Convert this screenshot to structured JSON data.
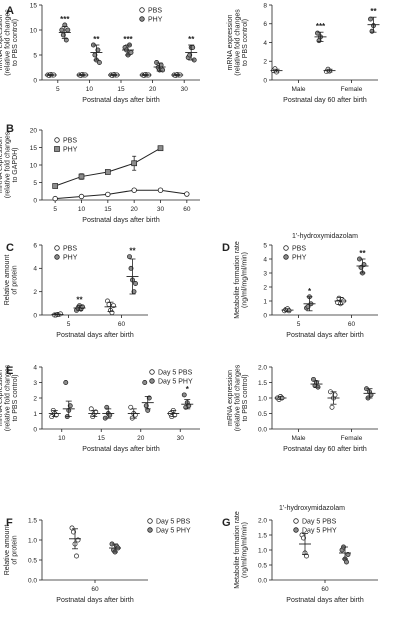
{
  "colors": {
    "pbs_fill": "#ffffff",
    "phy_fill": "#8c8c8c",
    "stroke": "#222222"
  },
  "chart_data": [
    {
      "id": "A1",
      "letter": "A",
      "type": "scatter",
      "xlabel": "Postnatal days after birth",
      "ylabel": [
        "mRNA expression",
        "(relative fold changes",
        "to PBS control)"
      ],
      "categories": [
        "5",
        "10",
        "15",
        "20",
        "30"
      ],
      "ylim": [
        0,
        15
      ],
      "yticks": [
        0,
        5,
        10,
        15
      ],
      "legend": [
        {
          "name": "PBS",
          "marker": "circle-open"
        },
        {
          "name": "PHY",
          "marker": "circle-filled"
        }
      ],
      "series": [
        {
          "name": "PBS",
          "mean": [
            1,
            1,
            1,
            1,
            1
          ],
          "sd": [
            0.1,
            0.1,
            0.1,
            0.1,
            0.1
          ],
          "points": [
            [
              1,
              0.9,
              1.1,
              1,
              1
            ],
            [
              1,
              0.9,
              1.1,
              1,
              1
            ],
            [
              1,
              0.9,
              1.1,
              1,
              1
            ],
            [
              1,
              0.9,
              1.1,
              1,
              1
            ],
            [
              1,
              0.9,
              1.1,
              1,
              1
            ]
          ]
        },
        {
          "name": "PHY",
          "mean": [
            9.5,
            5.5,
            6,
            2.6,
            5.5
          ],
          "sd": [
            1.2,
            1.5,
            1,
            0.8,
            1.5
          ],
          "points": [
            [
              10,
              9,
              11,
              8,
              10
            ],
            [
              7,
              5,
              4,
              6,
              3.5
            ],
            [
              6.5,
              6,
              5,
              7,
              5.5
            ],
            [
              3.5,
              2.5,
              2,
              3,
              2
            ],
            [
              4.5,
              5,
              6.5,
              6.5,
              4
            ]
          ]
        }
      ],
      "annotations": [
        "***",
        "**",
        "***",
        "",
        "**"
      ]
    },
    {
      "id": "A2",
      "type": "scatter",
      "xlabel": "Postnatal day 60 after birth",
      "ylabel": [
        "mRNA expression",
        "(relative fold changes",
        "to PBS control)"
      ],
      "categories": [
        "Male",
        "Female"
      ],
      "ylim": [
        0,
        8
      ],
      "yticks": [
        0,
        2,
        4,
        6,
        8
      ],
      "series": [
        {
          "name": "PBS",
          "mean": [
            1,
            1
          ],
          "sd": [
            0.15,
            0.15
          ],
          "points": [
            [
              1,
              1.2,
              0.85
            ],
            [
              0.9,
              1.15,
              0.95
            ]
          ]
        },
        {
          "name": "PHY",
          "mean": [
            4.6,
            5.9
          ],
          "sd": [
            0.5,
            0.8
          ],
          "points": [
            [
              5,
              4.2,
              4.6
            ],
            [
              6.5,
              5.2,
              5.8
            ]
          ]
        }
      ],
      "annotations": [
        "***",
        "**"
      ]
    },
    {
      "id": "B",
      "letter": "B",
      "type": "line",
      "xlabel": "Postnatal days after birth",
      "ylabel": [
        "mRNA expression",
        "(relative fold changes",
        "to GAPDH)"
      ],
      "categories": [
        "5",
        "10",
        "15",
        "20",
        "30",
        "60"
      ],
      "ylim": [
        0,
        20
      ],
      "yticks": [
        0,
        5,
        10,
        15,
        20
      ],
      "legend": [
        {
          "name": "PBS",
          "marker": "circle-open"
        },
        {
          "name": "PHY",
          "marker": "square-filled"
        }
      ],
      "series": [
        {
          "name": "PBS",
          "values": [
            0.4,
            1,
            1.6,
            2.8,
            2.8,
            1.7
          ],
          "sd": [
            0.1,
            0.2,
            0.2,
            0.3,
            0.3,
            0.3
          ]
        },
        {
          "name": "PHY",
          "values": [
            4,
            6.7,
            8,
            10.5,
            14.8,
            0
          ],
          "sd": [
            0.3,
            0.8,
            0.6,
            2,
            0.4,
            0
          ]
        }
      ]
    },
    {
      "id": "C",
      "letter": "C",
      "type": "scatter",
      "xlabel": "Postnatal days after birth",
      "ylabel": [
        "Relative amount",
        "of protein"
      ],
      "categories": [
        "5",
        "60"
      ],
      "ylim": [
        0,
        6
      ],
      "yticks": [
        0,
        2,
        4,
        6
      ],
      "legend": [
        {
          "name": "PBS",
          "marker": "circle-open"
        },
        {
          "name": "PHY",
          "marker": "circle-filled"
        }
      ],
      "series": [
        {
          "name": "PBS",
          "mean": [
            0.05,
            0.7
          ],
          "sd": [
            0.05,
            0.4
          ],
          "points": [
            [
              0,
              0,
              0.05,
              0.05,
              0.1
            ],
            [
              1.2,
              0.9,
              0.4,
              0.2,
              0.8
            ]
          ]
        },
        {
          "name": "PHY",
          "mean": [
            0.6,
            3.3
          ],
          "sd": [
            0.2,
            1.5
          ],
          "points": [
            [
              0.4,
              0.6,
              0.8,
              0.5,
              0.7
            ],
            [
              5,
              4,
              3,
              2,
              2.7
            ]
          ]
        }
      ],
      "annotations": [
        "**",
        "**"
      ]
    },
    {
      "id": "D",
      "letter": "D",
      "type": "scatter",
      "title": "1'-hydroxymidazolam",
      "xlabel": "Postnatal days after birth",
      "ylabel": [
        "Metabolite formation rate",
        "(ng/ml/mg/ml/min)"
      ],
      "categories": [
        "5",
        "60"
      ],
      "ylim": [
        0,
        5
      ],
      "yticks": [
        0,
        1,
        2,
        3,
        4,
        5
      ],
      "legend": [
        {
          "name": "PBS",
          "marker": "circle-open"
        },
        {
          "name": "PHY",
          "marker": "circle-filled"
        }
      ],
      "series": [
        {
          "name": "PBS",
          "mean": [
            0.35,
            1
          ],
          "sd": [
            0.1,
            0.25
          ],
          "points": [
            [
              0.3,
              0.4,
              0.45,
              0.3
            ],
            [
              0.9,
              1.2,
              0.8,
              1.1,
              1
            ]
          ]
        },
        {
          "name": "PHY",
          "mean": [
            0.8,
            3.5
          ],
          "sd": [
            0.5,
            0.5
          ],
          "points": [
            [
              0.5,
              0.6,
              1.3,
              0.8
            ],
            [
              4,
              3.4,
              3,
              3.6
            ]
          ]
        }
      ],
      "annotations": [
        "*",
        "**"
      ]
    },
    {
      "id": "E1",
      "letter": "E",
      "type": "scatter",
      "xlabel": "Postnatal days after birth",
      "ylabel": [
        "mRNA expression",
        "(relative fold changes",
        "to PBS control)"
      ],
      "categories": [
        "10",
        "15",
        "20",
        "30"
      ],
      "ylim": [
        0,
        4
      ],
      "yticks": [
        0,
        1,
        2,
        3,
        4
      ],
      "legend": [
        {
          "name": "Day 5 PBS",
          "marker": "circle-open"
        },
        {
          "name": "Day 5 PHY",
          "marker": "circle-filled"
        }
      ],
      "series": [
        {
          "name": "Day 5 PBS",
          "mean": [
            1,
            1,
            1,
            1
          ],
          "sd": [
            0.2,
            0.2,
            0.3,
            0.2
          ],
          "points": [
            [
              0.8,
              1.2,
              1,
              0.9
            ],
            [
              1.3,
              0.8,
              1,
              1.1
            ],
            [
              1.4,
              0.7,
              1,
              0.9
            ],
            [
              1,
              0.8,
              1.2,
              0.9
            ]
          ]
        },
        {
          "name": "Day 5 PHY",
          "mean": [
            1.3,
            1,
            1.7,
            1.6
          ],
          "sd": [
            0.5,
            0.3,
            0.4,
            0.3
          ],
          "points": [
            [
              3,
              0.8,
              1.2,
              1.5
            ],
            [
              0.7,
              1.4,
              1,
              0.9
            ],
            [
              3,
              1.5,
              1.2,
              2
            ],
            [
              2.2,
              1.4,
              1.7,
              1.5
            ]
          ]
        }
      ],
      "annotations": [
        "",
        "",
        "",
        "*"
      ]
    },
    {
      "id": "E2",
      "type": "scatter",
      "xlabel": "Postnatal day 60 after birth",
      "ylabel": [
        "mRNA expression",
        "(relative fold changes",
        "to PBS control)"
      ],
      "categories": [
        "Male",
        "Female"
      ],
      "ylim": [
        0,
        2
      ],
      "yticks": [
        0.0,
        0.5,
        1.0,
        1.5,
        2.0
      ],
      "series": [
        {
          "name": "PBS",
          "mean": [
            1,
            1
          ],
          "sd": [
            0.05,
            0.2
          ],
          "points": [
            [
              1,
              0.95,
              1.05,
              1
            ],
            [
              1.2,
              0.7,
              1,
              1.1
            ]
          ]
        },
        {
          "name": "PHY",
          "mean": [
            1.45,
            1.15
          ],
          "sd": [
            0.1,
            0.15
          ],
          "points": [
            [
              1.6,
              1.4,
              1.5,
              1.35
            ],
            [
              1.3,
              1,
              1.2,
              1.1
            ]
          ]
        }
      ],
      "annotations": [
        "",
        ""
      ]
    },
    {
      "id": "F",
      "letter": "F",
      "type": "scatter",
      "xlabel": "Postnatal days after birth",
      "ylabel": [
        "Relative amount",
        "of protein"
      ],
      "categories": [
        "60"
      ],
      "ylim": [
        0,
        1.5
      ],
      "yticks": [
        0.0,
        0.5,
        1.0,
        1.5
      ],
      "legend": [
        {
          "name": "Day 5 PBS",
          "marker": "circle-open"
        },
        {
          "name": "Day 5 PHY",
          "marker": "circle-filled"
        }
      ],
      "series": [
        {
          "name": "Day 5 PBS",
          "mean": [
            1.03
          ],
          "sd": [
            0.25
          ],
          "points": [
            [
              1.3,
              1.2,
              0.9,
              0.6,
              1
            ]
          ]
        },
        {
          "name": "Day 5 PHY",
          "mean": [
            0.8
          ],
          "sd": [
            0.1
          ],
          "points": [
            [
              0.9,
              0.75,
              0.7,
              0.85,
              0.8
            ]
          ]
        }
      ]
    },
    {
      "id": "G",
      "letter": "G",
      "type": "scatter",
      "title": "1'-hydroxymidazolam",
      "xlabel": "Postnatal days after birth",
      "ylabel": [
        "Metabolite formation rate",
        "(ng/ml/mg/ml/min)"
      ],
      "categories": [
        "60"
      ],
      "ylim": [
        0,
        2
      ],
      "yticks": [
        0.0,
        0.5,
        1.0,
        1.5,
        2.0
      ],
      "legend": [
        {
          "name": "Day 5 PBS",
          "marker": "circle-open"
        },
        {
          "name": "Day 5 PHY",
          "marker": "circle-filled"
        }
      ],
      "series": [
        {
          "name": "Day 5 PBS",
          "mean": [
            1.2
          ],
          "sd": [
            0.35
          ],
          "points": [
            [
              1.5,
              1.4,
              0.9,
              0.8
            ]
          ]
        },
        {
          "name": "Day 5 PHY",
          "mean": [
            0.9
          ],
          "sd": [
            0.2
          ],
          "points": [
            [
              1,
              1.1,
              0.7,
              0.6,
              0.85
            ]
          ]
        }
      ]
    }
  ]
}
